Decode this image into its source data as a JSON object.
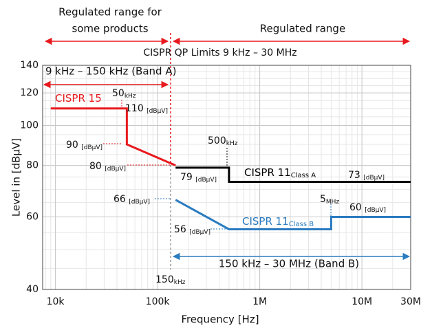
{
  "chart_data": {
    "type": "line",
    "title": "CISPR QP Limits 9 kHz – 30 MHz",
    "x_label": "Frequency [Hz]",
    "y_label": "Level in [dBµV]",
    "xscale": "log",
    "yscale": "log",
    "grid": true,
    "xlim": [
      7500,
      30000000
    ],
    "ylim": [
      40,
      140
    ],
    "xticks": [
      {
        "value": 10000,
        "label": "10k"
      },
      {
        "value": 100000,
        "label": "100k"
      },
      {
        "value": 1000000,
        "label": "1M"
      },
      {
        "value": 10000000,
        "label": "10M"
      },
      {
        "value": 30000000,
        "label": "30M"
      }
    ],
    "yticks": [
      40,
      60,
      80,
      100,
      120,
      140
    ],
    "series": [
      {
        "name": "CISPR 15",
        "color": "#e8191e",
        "x": [
          9000,
          50000,
          50000,
          150000
        ],
        "values": [
          110,
          110,
          90,
          80
        ]
      },
      {
        "name": "CISPR 11",
        "subscript": "Class A",
        "color": "#000000",
        "x": [
          150000,
          500000,
          500000,
          30000000
        ],
        "values": [
          79,
          79,
          73,
          73
        ]
      },
      {
        "name": "CISPR 11",
        "subscript": "Class B",
        "color": "#2a7bc0",
        "x": [
          150000,
          500000,
          5000000,
          5000000,
          30000000
        ],
        "values": [
          66,
          56,
          56,
          60,
          60
        ]
      }
    ],
    "ranges": [
      {
        "lines": [
          "Regulated range for",
          "some products"
        ],
        "color": "#e8191e"
      },
      {
        "lines": [
          "Regulated range"
        ],
        "color": "#e8191e"
      },
      {
        "lines": [
          "9 kHz – 150 kHz (Band A)"
        ],
        "color": "#e8191e"
      },
      {
        "lines": [
          "150 kHz – 30 MHz (Band B)"
        ],
        "color": "#2a7bc0"
      }
    ],
    "annotations": [
      {
        "text": "50",
        "sub": "kHz"
      },
      {
        "text": "110 ",
        "sub": "[dBµV]"
      },
      {
        "text": "90 ",
        "sub": "[dBµV]"
      },
      {
        "text": "80 ",
        "sub": "[dBµV]"
      },
      {
        "text": "500",
        "sub": "kHz"
      },
      {
        "text": "79 ",
        "sub": "[dBµV]"
      },
      {
        "text": "73 ",
        "sub": "[dBµV]"
      },
      {
        "text": "66 ",
        "sub": "[dBµV]"
      },
      {
        "text": "5",
        "sub": "MHz"
      },
      {
        "text": "60 ",
        "sub": "[dBµV]"
      },
      {
        "text": "56 ",
        "sub": "[dBµV]"
      },
      {
        "text": "150",
        "sub": "kHz"
      }
    ]
  }
}
